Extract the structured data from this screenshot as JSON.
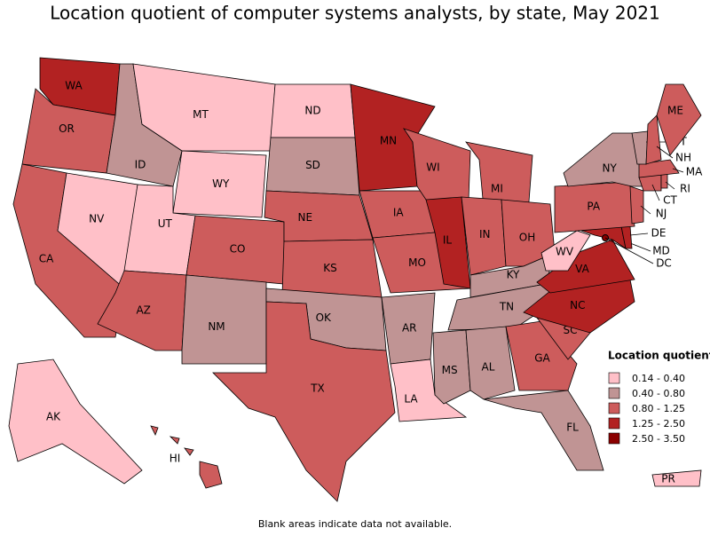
{
  "title": "Location quotient of computer systems analysts, by state, May 2021",
  "footnote": "Blank areas indicate data not available.",
  "legend": {
    "title": "Location quotient",
    "items": [
      {
        "label": "0.14 - 0.40",
        "color": "#ffc0c8"
      },
      {
        "label": "0.40 - 0.80",
        "color": "#c09494"
      },
      {
        "label": "0.80 - 1.25",
        "color": "#cd5c5c"
      },
      {
        "label": "1.25 - 2.50",
        "color": "#b22222"
      },
      {
        "label": "2.50 - 3.50",
        "color": "#8b0000"
      }
    ]
  },
  "states": [
    {
      "code": "WA",
      "color": "#b22222"
    },
    {
      "code": "OR",
      "color": "#cd5c5c"
    },
    {
      "code": "CA",
      "color": "#cd5c5c"
    },
    {
      "code": "NV",
      "color": "#ffc0c8"
    },
    {
      "code": "ID",
      "color": "#c09494"
    },
    {
      "code": "MT",
      "color": "#ffc0c8"
    },
    {
      "code": "WY",
      "color": "#ffc0c8"
    },
    {
      "code": "UT",
      "color": "#ffc0c8"
    },
    {
      "code": "AZ",
      "color": "#cd5c5c"
    },
    {
      "code": "CO",
      "color": "#cd5c5c"
    },
    {
      "code": "NM",
      "color": "#c09494"
    },
    {
      "code": "ND",
      "color": "#ffc0c8"
    },
    {
      "code": "SD",
      "color": "#c09494"
    },
    {
      "code": "NE",
      "color": "#cd5c5c"
    },
    {
      "code": "KS",
      "color": "#cd5c5c"
    },
    {
      "code": "OK",
      "color": "#c09494"
    },
    {
      "code": "TX",
      "color": "#cd5c5c"
    },
    {
      "code": "MN",
      "color": "#b22222"
    },
    {
      "code": "IA",
      "color": "#cd5c5c"
    },
    {
      "code": "MO",
      "color": "#cd5c5c"
    },
    {
      "code": "AR",
      "color": "#c09494"
    },
    {
      "code": "LA",
      "color": "#ffc0c8"
    },
    {
      "code": "WI",
      "color": "#cd5c5c"
    },
    {
      "code": "IL",
      "color": "#b22222"
    },
    {
      "code": "MI",
      "color": "#cd5c5c"
    },
    {
      "code": "IN",
      "color": "#cd5c5c"
    },
    {
      "code": "OH",
      "color": "#cd5c5c"
    },
    {
      "code": "KY",
      "color": "#c09494"
    },
    {
      "code": "TN",
      "color": "#c09494"
    },
    {
      "code": "MS",
      "color": "#c09494"
    },
    {
      "code": "AL",
      "color": "#c09494"
    },
    {
      "code": "GA",
      "color": "#cd5c5c"
    },
    {
      "code": "FL",
      "color": "#c09494"
    },
    {
      "code": "SC",
      "color": "#cd5c5c"
    },
    {
      "code": "NC",
      "color": "#b22222"
    },
    {
      "code": "VA",
      "color": "#b22222"
    },
    {
      "code": "WV",
      "color": "#ffc0c8"
    },
    {
      "code": "MD",
      "color": "#b22222"
    },
    {
      "code": "DE",
      "color": "#b22222"
    },
    {
      "code": "DC",
      "color": "#8b0000"
    },
    {
      "code": "PA",
      "color": "#cd5c5c"
    },
    {
      "code": "NY",
      "color": "#c09494"
    },
    {
      "code": "NJ",
      "color": "#cd5c5c"
    },
    {
      "code": "CT",
      "color": "#cd5c5c"
    },
    {
      "code": "RI",
      "color": "#cd5c5c"
    },
    {
      "code": "MA",
      "color": "#cd5c5c"
    },
    {
      "code": "VT",
      "color": "#c09494"
    },
    {
      "code": "NH",
      "color": "#cd5c5c"
    },
    {
      "code": "ME",
      "color": "#cd5c5c"
    },
    {
      "code": "AK",
      "color": "#ffc0c8"
    },
    {
      "code": "HI",
      "color": "#cd5c5c"
    },
    {
      "code": "PR",
      "color": "#ffc0c8"
    }
  ]
}
